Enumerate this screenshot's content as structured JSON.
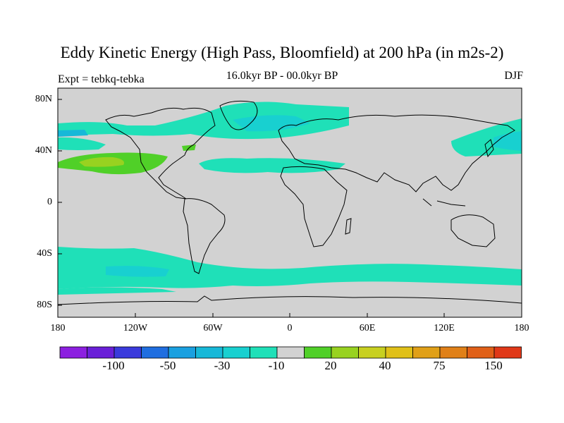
{
  "title": "Eddy Kinetic Energy (High Pass, Bloomfield) at 200 hPa (in m2s-2)",
  "subtitle": "16.0kyr BP - 00.0kyr BP",
  "experiment": "Expt = tebkq-tebka",
  "season": "DJF",
  "lat_ticks": [
    "80N",
    "40N",
    "0",
    "40S",
    "80S"
  ],
  "lon_ticks": [
    "180",
    "120W",
    "60W",
    "0",
    "60E",
    "120E",
    "180"
  ],
  "colorbar": {
    "colors": [
      "#8c1fe0",
      "#6a1fd8",
      "#3a3adc",
      "#1f6ee0",
      "#1aa0e0",
      "#17b8d8",
      "#18d0d0",
      "#1fe0b8",
      "#d2d2d2",
      "#50d028",
      "#98d220",
      "#c8d020",
      "#e0c018",
      "#e0a018",
      "#e08018",
      "#e06018",
      "#e03818"
    ],
    "labels": [
      "-100",
      "-50",
      "-30",
      "-10",
      "20",
      "40",
      "75",
      "150"
    ]
  },
  "field_colors": {
    "background": "#d2d2d2",
    "neg_light": "#1fe0b8",
    "neg_mid": "#18d0d0",
    "neg_dark": "#17b8d8",
    "pos_light": "#50d028",
    "pos_mid": "#98d220"
  }
}
